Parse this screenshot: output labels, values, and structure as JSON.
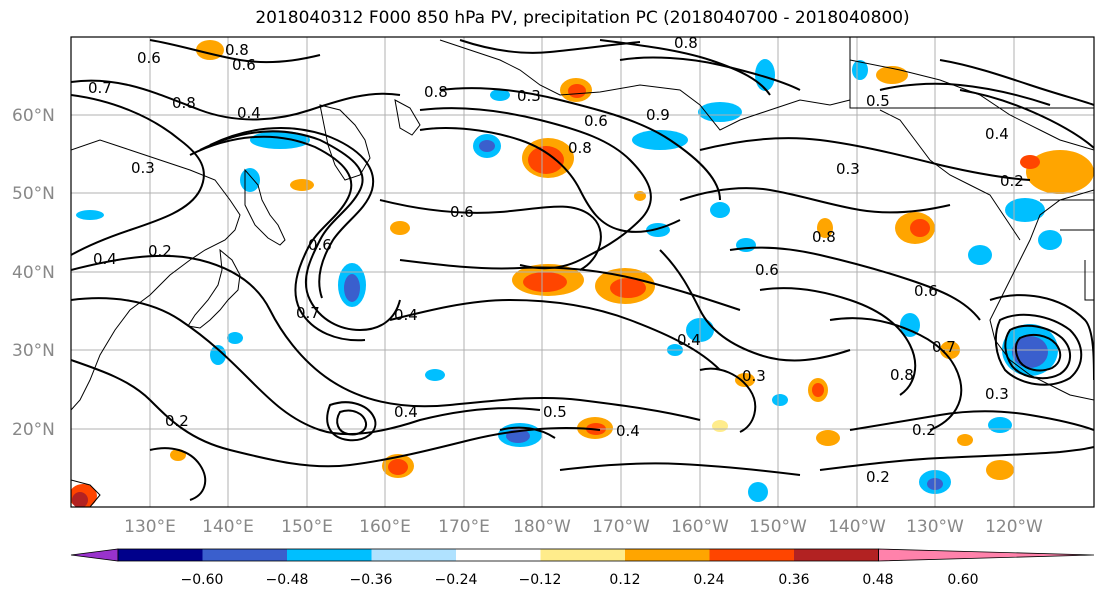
{
  "title": "2018040312 F000 850 hPa PV, precipitation PC (2018040700 - 2018040800)",
  "lat_labels": [
    "60°N",
    "50°N",
    "40°N",
    "30°N",
    "20°N"
  ],
  "lon_labels": [
    "130°E",
    "140°E",
    "150°E",
    "160°E",
    "170°E",
    "180°W",
    "170°W",
    "160°W",
    "150°W",
    "140°W",
    "130°W",
    "120°W"
  ],
  "colorbar": {
    "ticks": [
      "−0.60",
      "−0.48",
      "−0.36",
      "−0.24",
      "−0.12",
      "0.12",
      "0.24",
      "0.36",
      "0.48",
      "0.60"
    ],
    "colors": [
      "#9932CC",
      "#00008B",
      "#3A5FCD",
      "#00BFFF",
      "#B0E2FF",
      "#FFFFFF",
      "#FFEC8B",
      "#FFA500",
      "#FF4500",
      "#B22222",
      "#FF82AB"
    ]
  },
  "contour_labels": [
    "0.6",
    "0.8",
    "0.6",
    "0.7",
    "0.8",
    "0.4",
    "0.3",
    "0.2",
    "0.4",
    "0.6",
    "0.7",
    "0.8",
    "0.6",
    "0.4",
    "0.3",
    "0.2",
    "0.4",
    "0.5",
    "0.8",
    "0.6",
    "0.9",
    "0.8",
    "0.6",
    "0.8",
    "0.3",
    "0.5",
    "0.4",
    "0.2",
    "0.3",
    "0.6",
    "0.4",
    "0.2",
    "0.8",
    "0.7",
    "0.3",
    "0.2",
    "0.4"
  ]
}
